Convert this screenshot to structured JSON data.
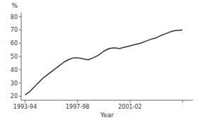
{
  "chart_data": {
    "type": "line",
    "xlabel": "Year",
    "ylabel": "%",
    "x": [
      0,
      0.3,
      0.6,
      1.0,
      1.4,
      1.8,
      2.2,
      2.6,
      3.0,
      3.4,
      3.7,
      4.0,
      4.3,
      4.5,
      4.8,
      5.2,
      5.6,
      6.0,
      6.4,
      6.8,
      7.2,
      7.6,
      8.0,
      8.4,
      8.8,
      9.2,
      9.6,
      10.0,
      10.4,
      10.8,
      11.2,
      11.5,
      12.0
    ],
    "values": [
      21,
      23,
      26,
      30,
      34,
      37,
      40,
      43,
      46,
      48,
      49,
      49,
      48.5,
      48,
      47.5,
      49,
      51,
      54,
      56,
      56.5,
      56,
      57,
      58,
      59,
      60,
      61.5,
      63,
      64,
      66,
      67.5,
      69,
      69.5,
      70
    ],
    "color": "#333333",
    "xlim": [
      -0.3,
      12.8
    ],
    "ylim": [
      17,
      83
    ],
    "xticks": [
      {
        "value": 0,
        "label": "1993-94"
      },
      {
        "value": 4,
        "label": "1997-98"
      },
      {
        "value": 8,
        "label": "2001-02"
      },
      {
        "value": 12,
        "label": null
      }
    ],
    "yticks": [
      20,
      30,
      40,
      50,
      60,
      70,
      80
    ],
    "grid": false
  }
}
